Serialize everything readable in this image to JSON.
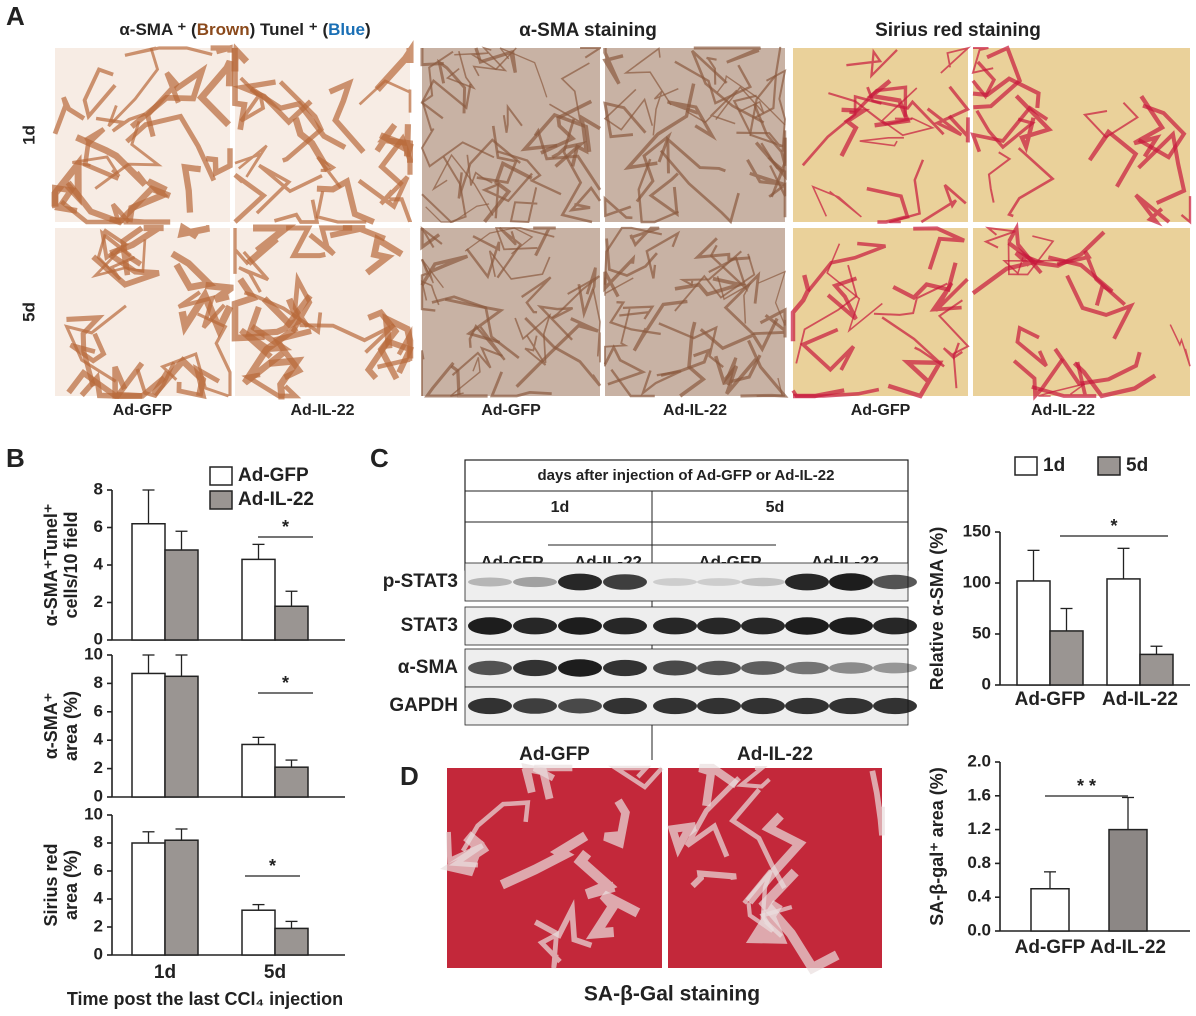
{
  "panels": {
    "a": "A",
    "b": "B",
    "c": "C",
    "d": "D"
  },
  "panel_a": {
    "header_parts": [
      "α-SMA ⁺ (",
      "Brown",
      ") Tunel ⁺ (",
      "Blue",
      ")"
    ],
    "header_colors": [
      "#222222",
      "#8b4a1c",
      "#222222",
      "#1a6fb5",
      "#222222"
    ],
    "headers": [
      "α-SMA staining",
      "Sirius red staining"
    ],
    "rows": [
      "1d",
      "5d"
    ],
    "columns": [
      "Ad-GFP",
      "Ad-IL-22",
      "Ad-GFP",
      "Ad-IL-22",
      "Ad-GFP",
      "Ad-IL-22"
    ]
  },
  "blot": {
    "header": "days after injection of Ad-GFP or Ad-IL-22",
    "times": [
      "1d",
      "5d"
    ],
    "groups": [
      "Ad-GFP",
      "Ad-IL-22",
      "Ad-GFP",
      "Ad-IL-22"
    ],
    "rows": [
      "p-STAT3",
      "STAT3",
      "α-SMA",
      "GAPDH"
    ]
  },
  "panel_d": {
    "images": [
      "Ad-GFP",
      "Ad-IL-22"
    ],
    "caption": "SA-β-Gal staining"
  },
  "chart_data": [
    {
      "type": "bar",
      "ylabel": [
        "α-SMA⁺Tunel⁺",
        "cells/10 field"
      ],
      "ylim": [
        0,
        8
      ],
      "yticks": [
        0,
        2,
        4,
        6,
        8
      ],
      "series": [
        {
          "name": "Ad-GFP",
          "color": "#ffffff",
          "values": [
            6.2,
            4.3
          ],
          "errors": [
            1.8,
            0.8
          ]
        },
        {
          "name": "Ad-IL-22",
          "color": "#9a9592",
          "values": [
            4.8,
            1.8
          ],
          "errors": [
            1.0,
            0.8
          ]
        }
      ],
      "legend": "upper right",
      "annotation": "*"
    },
    {
      "type": "bar",
      "ylabel": [
        "α-SMA⁺",
        "area (%)"
      ],
      "ylim": [
        0,
        10
      ],
      "yticks": [
        0,
        2,
        4,
        6,
        8,
        10
      ],
      "series": [
        {
          "name": "Ad-GFP",
          "color": "#ffffff",
          "values": [
            8.7,
            3.7
          ],
          "errors": [
            1.3,
            0.5
          ]
        },
        {
          "name": "Ad-IL-22",
          "color": "#9a9592",
          "values": [
            8.5,
            2.1
          ],
          "errors": [
            1.5,
            0.5
          ]
        }
      ],
      "annotation": "*"
    },
    {
      "type": "bar",
      "ylabel": [
        "Sirius red",
        "area (%)"
      ],
      "ylim": [
        0,
        10
      ],
      "yticks": [
        0,
        2,
        4,
        6,
        8,
        10
      ],
      "categories": [
        "1d",
        "5d"
      ],
      "xlabel": "Time post the last CCl₄ injection",
      "series": [
        {
          "name": "Ad-GFP",
          "color": "#ffffff",
          "values": [
            8.0,
            3.2
          ],
          "errors": [
            0.8,
            0.4
          ]
        },
        {
          "name": "Ad-IL-22",
          "color": "#9a9592",
          "values": [
            8.2,
            1.9
          ],
          "errors": [
            0.8,
            0.5
          ]
        }
      ],
      "annotation": "*"
    },
    {
      "type": "bar",
      "ylabel": [
        "Relative α-SMA (%)"
      ],
      "ylim": [
        0,
        150
      ],
      "yticks": [
        0,
        50,
        100,
        150
      ],
      "categories": [
        "Ad-GFP",
        "Ad-IL-22"
      ],
      "series": [
        {
          "name": "1d",
          "color": "#ffffff",
          "values": [
            102,
            104
          ],
          "errors": [
            30,
            30
          ]
        },
        {
          "name": "5d",
          "color": "#9a9592",
          "values": [
            53,
            30
          ],
          "errors": [
            22,
            8
          ]
        }
      ],
      "legend": "top",
      "annotation": "*"
    },
    {
      "type": "bar",
      "ylabel": [
        "SA-β-gal⁺ area (%)"
      ],
      "ylim": [
        0,
        2
      ],
      "yticks": [
        {
          "value": 0,
          "label": "0.0"
        },
        0.4,
        0.8,
        1.2,
        1.6,
        {
          "value": 2,
          "label": "2.0"
        }
      ],
      "categories": [
        "Ad-GFP",
        "Ad-IL-22"
      ],
      "series": [
        {
          "values": [
            0.5,
            1.2
          ],
          "errors": [
            0.2,
            0.38
          ],
          "colors": [
            "#ffffff",
            "#8c8785"
          ]
        }
      ],
      "annotation": "* *"
    }
  ]
}
